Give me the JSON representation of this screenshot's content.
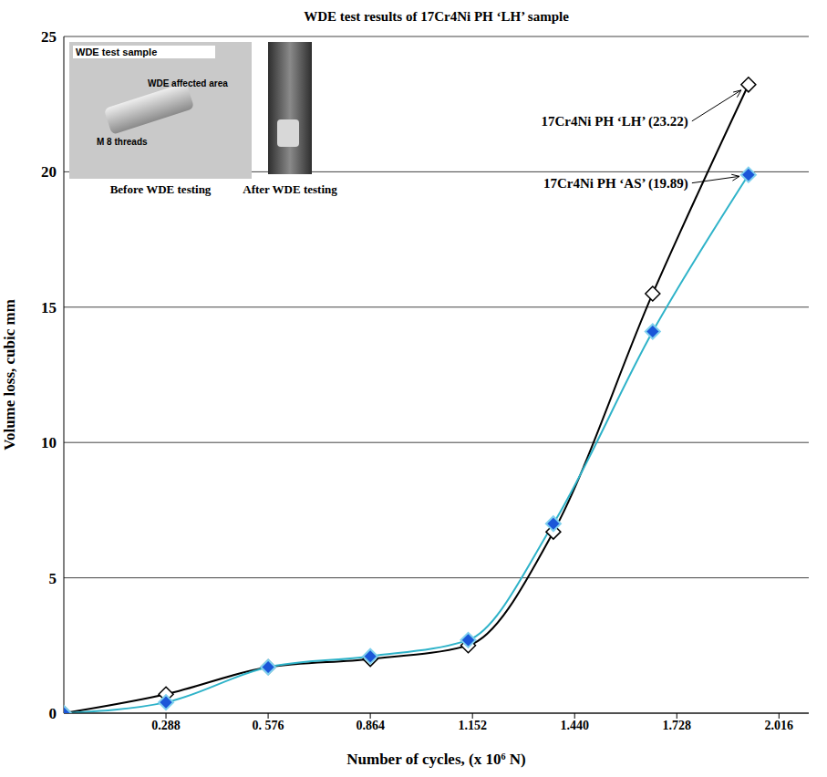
{
  "chart_data": {
    "type": "line",
    "title": "WDE test results of 17Cr4Ni PH ‘LH’ sample",
    "x_label": "Number of cycles, (x 10⁶ N)",
    "y_label": "Volume loss, cubic mm",
    "x": [
      0,
      0.288,
      0.576,
      0.864,
      1.14,
      1.38,
      1.66,
      1.93
    ],
    "series": [
      {
        "name": "17Cr4Ni PH ‘LH’",
        "color": "#000000",
        "marker": "diamond_open",
        "line_style": "solid",
        "values": [
          0,
          0.7,
          1.7,
          2.0,
          2.5,
          6.7,
          15.5,
          23.22
        ]
      },
      {
        "name": "17Cr4Ni PH ‘AS’",
        "color": "#2fb3c9",
        "marker": "diamond",
        "line_style": "solid",
        "values": [
          0,
          0.4,
          1.7,
          2.1,
          2.7,
          7.0,
          14.1,
          19.89
        ]
      }
    ],
    "annotations": [
      "17Cr4Ni PH ‘LH’ (23.22)",
      "17Cr4Ni PH ‘AS’ (19.89)"
    ],
    "insets": {
      "before": {
        "title": "WDE test sample",
        "labels": [
          "WDE affected area",
          "M 8 threads"
        ],
        "caption": "Before WDE testing"
      },
      "after": {
        "caption": "After WDE testing"
      }
    },
    "xlim": [
      0,
      2.1
    ],
    "xticks": [
      0.288,
      {
        "value": 0.576,
        "label": "0. 576"
      },
      0.864,
      1.152,
      {
        "value": 1.44,
        "label": "1.440"
      },
      1.728,
      2.016
    ],
    "ylim": [
      0,
      25
    ],
    "yticks": [
      0,
      5,
      10,
      15,
      20,
      25
    ],
    "grid": true
  }
}
